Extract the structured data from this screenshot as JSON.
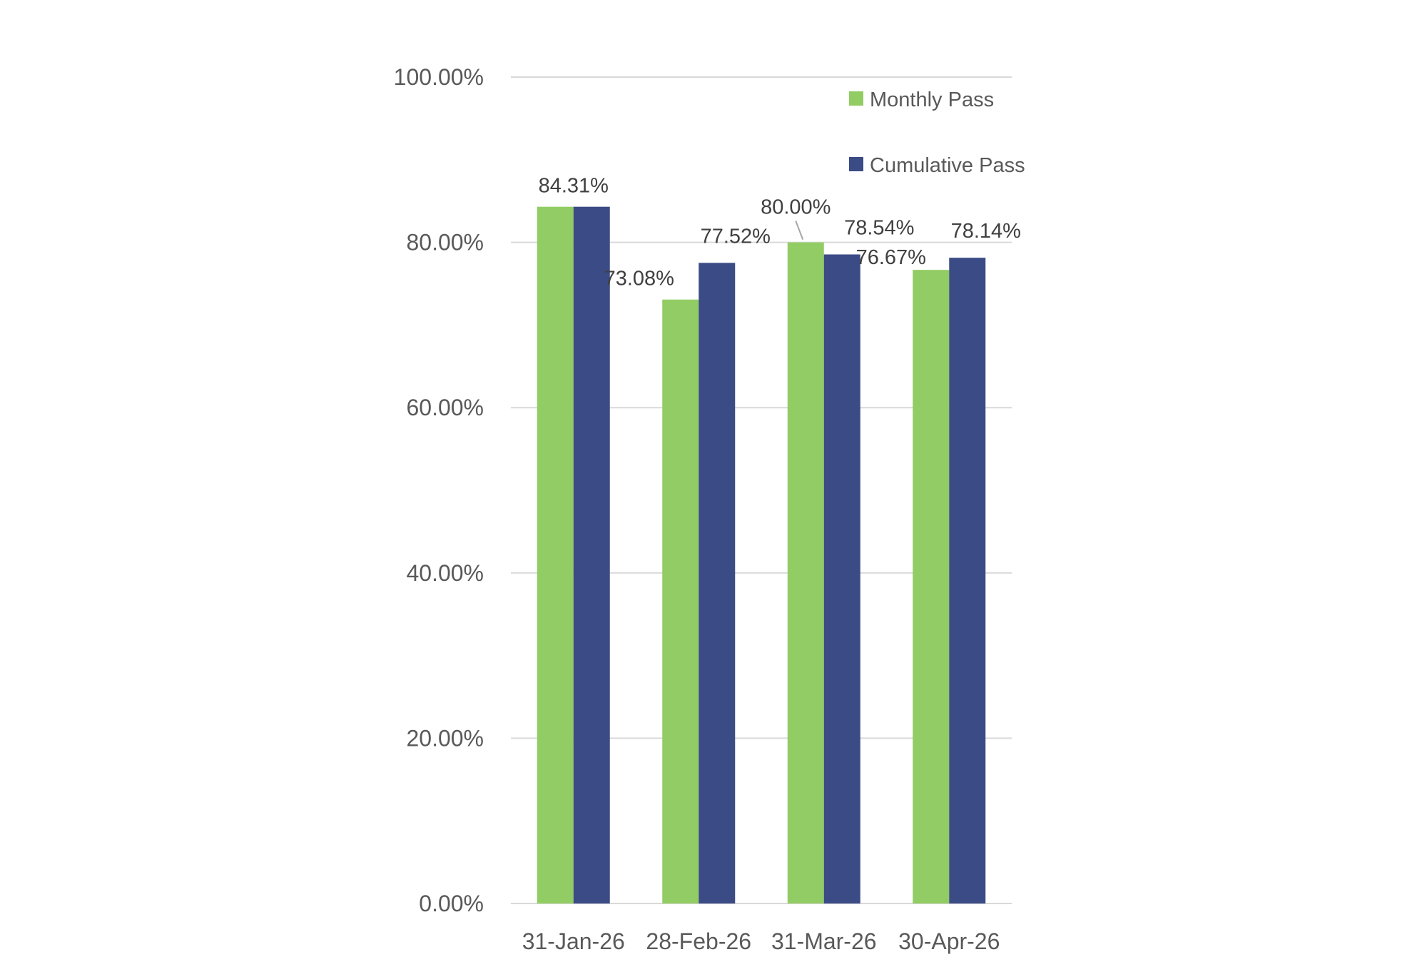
{
  "chart_data": {
    "type": "bar",
    "title": "",
    "xlabel": "",
    "ylabel": "",
    "categories": [
      "31-Jan-26",
      "28-Feb-26",
      "31-Mar-26",
      "30-Apr-26"
    ],
    "series": [
      {
        "name": "Monthly Pass",
        "color": "#92cc64",
        "values": [
          84.31,
          73.08,
          80.0,
          76.67
        ],
        "labels": [
          "",
          "73.08%",
          "80.00%",
          "76.67%"
        ]
      },
      {
        "name": "Cumulative Pass",
        "color": "#3b4b85",
        "values": [
          84.31,
          77.52,
          78.54,
          78.14
        ],
        "labels": [
          "",
          "77.52%",
          "78.54%",
          "78.14%"
        ]
      }
    ],
    "shared_labels": [
      "84.31%",
      "",
      "",
      ""
    ],
    "ylim": [
      0,
      100
    ],
    "yticks": [
      0,
      20,
      40,
      60,
      80,
      100
    ],
    "ytick_labels": [
      "0.00%",
      "20.00%",
      "40.00%",
      "60.00%",
      "80.00%",
      "100.00%"
    ],
    "grid": true,
    "legend_position": "top-right",
    "gridline_color": "#d9d9d9",
    "text_color": "#595959"
  }
}
